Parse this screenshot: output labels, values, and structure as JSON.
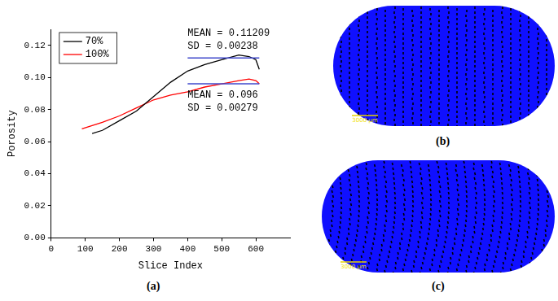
{
  "chart_data": {
    "type": "line",
    "x_label": "Slice Index",
    "y_label": "Porosity",
    "xlim": [
      0,
      700
    ],
    "xticks": [
      0,
      100,
      200,
      300,
      400,
      500,
      600
    ],
    "ylim": [
      0,
      0.13
    ],
    "yticks": [
      {
        "value": 0,
        "label": "0.00"
      },
      {
        "value": 0.02,
        "label": "0.02"
      },
      {
        "value": 0.04,
        "label": "0.04"
      },
      {
        "value": 0.06,
        "label": "0.06"
      },
      {
        "value": 0.08,
        "label": "0.08"
      },
      {
        "value": 0.1,
        "label": "0.10"
      },
      {
        "value": 0.12,
        "label": "0.12"
      }
    ],
    "grid": false,
    "legend": "upper left",
    "series": [
      {
        "name": "70%",
        "color": "#000000",
        "x": [
          120,
          150,
          200,
          250,
          300,
          350,
          400,
          450,
          500,
          550,
          580,
          600,
          610
        ],
        "values": [
          0.065,
          0.067,
          0.073,
          0.079,
          0.088,
          0.097,
          0.104,
          0.108,
          0.111,
          0.114,
          0.113,
          0.111,
          0.105
        ]
      },
      {
        "name": "100%",
        "color": "#ff0000",
        "x": [
          90,
          150,
          200,
          250,
          300,
          350,
          400,
          450,
          500,
          550,
          580,
          600,
          610
        ],
        "values": [
          0.068,
          0.072,
          0.076,
          0.081,
          0.086,
          0.089,
          0.091,
          0.094,
          0.096,
          0.098,
          0.099,
          0.098,
          0.096
        ]
      }
    ],
    "reference_lines": [
      {
        "x": [
          400,
          610
        ],
        "y": 0.11209,
        "color": "#3f48cc",
        "texts": [
          "MEAN = 0.11209",
          "SD = 0.00238"
        ]
      },
      {
        "x": [
          400,
          610
        ],
        "y": 0.096,
        "color": "#3f48cc",
        "texts": [
          "MEAN = 0.096",
          "SD = 0.00279"
        ]
      }
    ]
  },
  "panel_labels": [
    "(a)",
    "(b)",
    "(c)"
  ],
  "images": [
    {
      "scale_bar": "3000 μm",
      "color": "#1010ff"
    },
    {
      "scale_bar": "3000 μm",
      "color": "#1010ff"
    }
  ]
}
